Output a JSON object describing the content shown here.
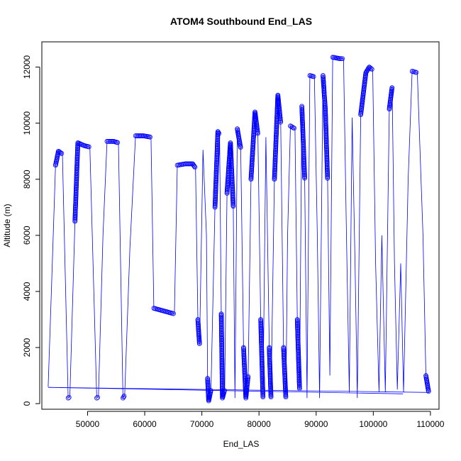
{
  "chart_data": {
    "type": "line",
    "title": "ATOM4 Southbound End_LAS",
    "xlabel": "End_LAS",
    "ylabel": "Altitude (m)",
    "xlim": [
      42000,
      111500
    ],
    "ylim": [
      -200,
      12900
    ],
    "x_ticks": [
      50000,
      60000,
      70000,
      80000,
      90000,
      100000,
      110000
    ],
    "y_ticks": [
      0,
      2000,
      4000,
      6000,
      8000,
      10000,
      12000
    ],
    "grid": false,
    "colors": {
      "series": "#0000ff",
      "axis": "#000000",
      "background": "#ffffff"
    },
    "series": [
      {
        "marker": "open-circle",
        "values_xy": [
          [
            43100,
            600
          ],
          [
            43700,
            4200
          ],
          [
            44400,
            8500
          ],
          [
            44900,
            9000
          ],
          [
            45600,
            8900
          ],
          [
            46600,
            200
          ],
          [
            46900,
            250
          ],
          [
            47800,
            6500
          ],
          [
            48300,
            9300
          ],
          [
            49400,
            9200
          ],
          [
            50400,
            9150
          ],
          [
            51600,
            200
          ],
          [
            51900,
            250
          ],
          [
            52700,
            6000
          ],
          [
            53400,
            9350
          ],
          [
            54600,
            9350
          ],
          [
            55400,
            9300
          ],
          [
            56200,
            200
          ],
          [
            56500,
            300
          ],
          [
            57400,
            5500
          ],
          [
            58400,
            9550
          ],
          [
            59800,
            9550
          ],
          [
            61100,
            9500
          ],
          [
            61600,
            3400
          ],
          [
            65200,
            3200
          ],
          [
            65700,
            8500
          ],
          [
            67100,
            8550
          ],
          [
            68400,
            8550
          ],
          [
            68900,
            8400
          ],
          [
            69300,
            3000
          ],
          [
            69600,
            2100
          ],
          [
            70200,
            9050
          ],
          [
            70800,
            6000
          ],
          [
            71000,
            900
          ],
          [
            71200,
            100
          ],
          [
            71600,
            500
          ],
          [
            72300,
            7000
          ],
          [
            72800,
            9700
          ],
          [
            73100,
            9600
          ],
          [
            73400,
            3200
          ],
          [
            73600,
            200
          ],
          [
            74000,
            500
          ],
          [
            74400,
            7500
          ],
          [
            75000,
            9300
          ],
          [
            75500,
            7000
          ],
          [
            75800,
            200
          ],
          [
            76200,
            9800
          ],
          [
            76800,
            9100
          ],
          [
            77300,
            2000
          ],
          [
            77700,
            200
          ],
          [
            78100,
            1000
          ],
          [
            78600,
            8000
          ],
          [
            79300,
            10400
          ],
          [
            79800,
            9600
          ],
          [
            80300,
            3000
          ],
          [
            80700,
            200
          ],
          [
            81200,
            9500
          ],
          [
            81800,
            2000
          ],
          [
            82100,
            200
          ],
          [
            82700,
            8000
          ],
          [
            83300,
            11000
          ],
          [
            83800,
            10000
          ],
          [
            84300,
            2000
          ],
          [
            84700,
            200
          ],
          [
            85000,
            6000
          ],
          [
            85500,
            9900
          ],
          [
            86300,
            9800
          ],
          [
            86700,
            3000
          ],
          [
            87100,
            500
          ],
          [
            87500,
            10600
          ],
          [
            88000,
            8000
          ],
          [
            88400,
            200
          ],
          [
            88900,
            11700
          ],
          [
            89700,
            11650
          ],
          [
            90200,
            6000
          ],
          [
            90600,
            200
          ],
          [
            91200,
            11700
          ],
          [
            91600,
            10500
          ],
          [
            92000,
            8000
          ],
          [
            92400,
            1000
          ],
          [
            92900,
            12350
          ],
          [
            94200,
            12300
          ],
          [
            94800,
            12300
          ],
          [
            95300,
            6000
          ],
          [
            95800,
            400
          ],
          [
            96300,
            10200
          ],
          [
            96800,
            5000
          ],
          [
            97200,
            200
          ],
          [
            97800,
            10300
          ],
          [
            98700,
            11800
          ],
          [
            99300,
            12000
          ],
          [
            99900,
            11900
          ],
          [
            100400,
            5000
          ],
          [
            101000,
            400
          ],
          [
            101500,
            6000
          ],
          [
            102100,
            400
          ],
          [
            102800,
            10500
          ],
          [
            103300,
            11300
          ],
          [
            103700,
            5000
          ],
          [
            104200,
            500
          ],
          [
            104800,
            5000
          ],
          [
            105300,
            400
          ],
          [
            106100,
            8000
          ],
          [
            106800,
            11850
          ],
          [
            107700,
            11800
          ],
          [
            108700,
            6000
          ],
          [
            109200,
            1000
          ],
          [
            109700,
            400
          ],
          [
            43100,
            580
          ],
          [
            105200,
            350
          ]
        ]
      }
    ]
  }
}
